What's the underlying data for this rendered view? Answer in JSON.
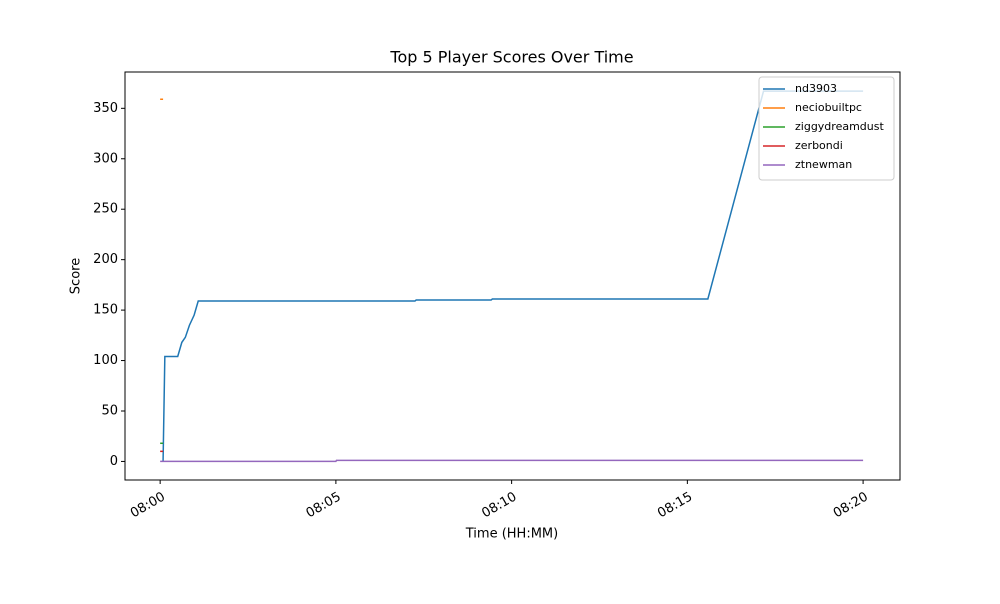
{
  "chart_data": {
    "type": "line",
    "title": "Top 5 Player Scores Over Time",
    "xlabel": "Time (HH:MM)",
    "ylabel": "Score",
    "xlim": [
      "07:59:00",
      "08:21:03"
    ],
    "xticks": [
      "08:00",
      "08:05",
      "08:10",
      "08:15",
      "08:20"
    ],
    "ylim": [
      -18.4,
      386
    ],
    "yticks": [
      0,
      50,
      100,
      150,
      200,
      250,
      300,
      350
    ],
    "legend": "upper right",
    "series": [
      {
        "name": "nd3903",
        "color": "#1f77b4",
        "x": [
          "08:00:05",
          "08:00:08",
          "08:00:30",
          "08:00:37",
          "08:00:43",
          "08:00:50",
          "08:00:58",
          "08:01:05",
          "08:07:15",
          "08:07:17",
          "08:09:25",
          "08:09:27",
          "08:15:35",
          "08:17:10",
          "08:20:00"
        ],
        "values": [
          0,
          104,
          104,
          118,
          123,
          135,
          145,
          159,
          159,
          160,
          160,
          161,
          161,
          367,
          367
        ]
      },
      {
        "name": "neciobuiltpc",
        "color": "#ff7f0e",
        "x": [
          "08:00:00",
          "08:00:05"
        ],
        "values": [
          359,
          359
        ]
      },
      {
        "name": "ziggydreamdust",
        "color": "#2ca02c",
        "x": [
          "08:00:00",
          "08:00:05"
        ],
        "values": [
          18,
          18
        ]
      },
      {
        "name": "zerbondi",
        "color": "#d62728",
        "x": [
          "08:00:00",
          "08:00:05"
        ],
        "values": [
          10,
          10
        ]
      },
      {
        "name": "ztnewman",
        "color": "#9467bd",
        "x": [
          "08:00:00",
          "08:05:00",
          "08:05:01",
          "08:20:00"
        ],
        "values": [
          0,
          0,
          1,
          1
        ]
      }
    ]
  }
}
